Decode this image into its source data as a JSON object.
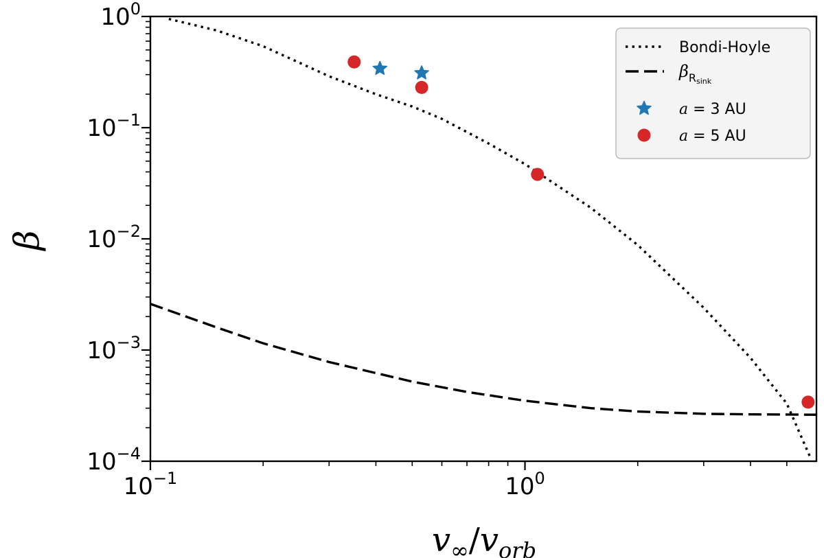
{
  "chart_data": {
    "type": "scatter",
    "title": "",
    "xlabel": "v∞/vorb",
    "ylabel": "β",
    "x_scale": "log",
    "y_scale": "log",
    "xlim": [
      0.1,
      6.0
    ],
    "ylim": [
      0.0001,
      1.0
    ],
    "x_ticks": [
      {
        "value": 0.1,
        "base": "10",
        "exp": "−1"
      },
      {
        "value": 1.0,
        "base": "10",
        "exp": "0"
      }
    ],
    "y_ticks": [
      {
        "value": 1.0,
        "base": "10",
        "exp": "0"
      },
      {
        "value": 0.1,
        "base": "10",
        "exp": "−1"
      },
      {
        "value": 0.01,
        "base": "10",
        "exp": "−2"
      },
      {
        "value": 0.001,
        "base": "10",
        "exp": "−3"
      },
      {
        "value": 0.0001,
        "base": "10",
        "exp": "−4"
      }
    ],
    "grid": false,
    "legend_position": "top-right",
    "series": [
      {
        "name": "Bondi-Hoyle",
        "kind": "line",
        "style": "dotted",
        "color": "#000000",
        "x": [
          0.112,
          0.15,
          0.2,
          0.3,
          0.4,
          0.5,
          0.6,
          0.8,
          1.0,
          1.5,
          2.0,
          3.0,
          4.0,
          5.0,
          5.8
        ],
        "y": [
          0.95,
          0.75,
          0.54,
          0.29,
          0.2,
          0.155,
          0.12,
          0.072,
          0.047,
          0.019,
          0.0088,
          0.0024,
          0.00085,
          0.00033,
          0.000105
        ]
      },
      {
        "name": "βRsink",
        "name_base": "β",
        "name_sub": "R",
        "name_subsub": "sink",
        "kind": "line",
        "style": "dashed",
        "color": "#000000",
        "x": [
          0.1,
          0.15,
          0.2,
          0.3,
          0.5,
          0.7,
          1.0,
          1.5,
          2.0,
          3.0,
          4.0,
          6.0
        ],
        "y": [
          0.0026,
          0.0016,
          0.00115,
          0.00078,
          0.00052,
          0.00042,
          0.00035,
          0.0003,
          0.00028,
          0.000267,
          0.000264,
          0.000262
        ]
      },
      {
        "name": "a = 3 AU",
        "name_var": "a",
        "name_rest": " = 3 AU",
        "kind": "scatter",
        "marker": "star",
        "color": "#1f77b4",
        "x": [
          0.41,
          0.53
        ],
        "y": [
          0.34,
          0.31
        ]
      },
      {
        "name": "a = 5 AU",
        "name_var": "a",
        "name_rest": " = 5 AU",
        "kind": "scatter",
        "marker": "circle",
        "color": "#d62728",
        "x": [
          0.35,
          0.53,
          1.08,
          5.7
        ],
        "y": [
          0.39,
          0.23,
          0.038,
          0.00034
        ]
      }
    ]
  }
}
